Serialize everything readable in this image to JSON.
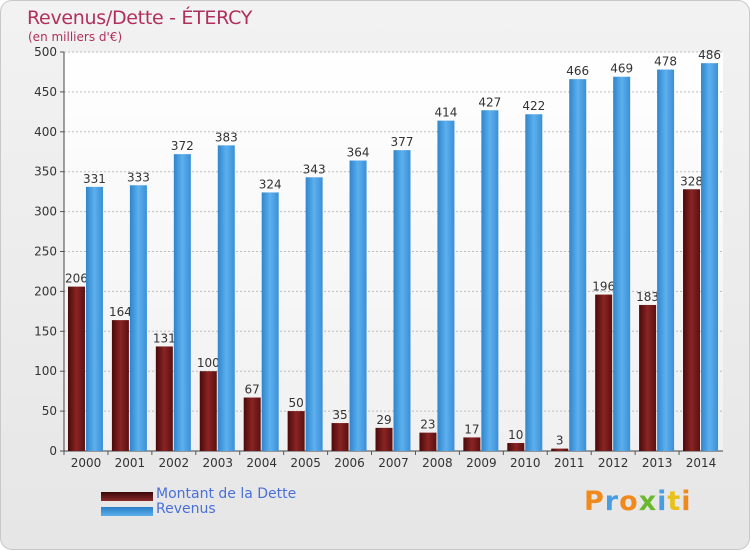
{
  "header": {
    "title": "Revenus/Dette - ÉTERCY",
    "subtitle": "(en milliers d'€)"
  },
  "legend": {
    "debt_label": "Montant de la Dette",
    "revenue_label": "Revenus"
  },
  "logo": {
    "text": "Proxiti"
  },
  "colors": {
    "debt": "#7a1a1a",
    "revenue": "#4a9de0",
    "title": "#b0305a"
  },
  "chart_data": {
    "type": "bar",
    "title": "Revenus/Dette - ÉTERCY",
    "subtitle": "(en milliers d'€)",
    "categories": [
      "2000",
      "2001",
      "2002",
      "2003",
      "2004",
      "2005",
      "2006",
      "2007",
      "2008",
      "2009",
      "2010",
      "2011",
      "2012",
      "2013",
      "2014"
    ],
    "series": [
      {
        "name": "Montant de la Dette",
        "values": [
          206,
          164,
          131,
          100,
          67,
          50,
          35,
          29,
          23,
          17,
          10,
          3,
          196,
          183,
          328
        ]
      },
      {
        "name": "Revenus",
        "values": [
          331,
          333,
          372,
          383,
          324,
          343,
          364,
          377,
          414,
          427,
          422,
          466,
          469,
          478,
          486
        ]
      }
    ],
    "ylim": [
      0,
      500
    ],
    "yticks": [
      0,
      50,
      100,
      150,
      200,
      250,
      300,
      350,
      400,
      450,
      500
    ],
    "grid": true,
    "legend_position": "bottom-left"
  }
}
